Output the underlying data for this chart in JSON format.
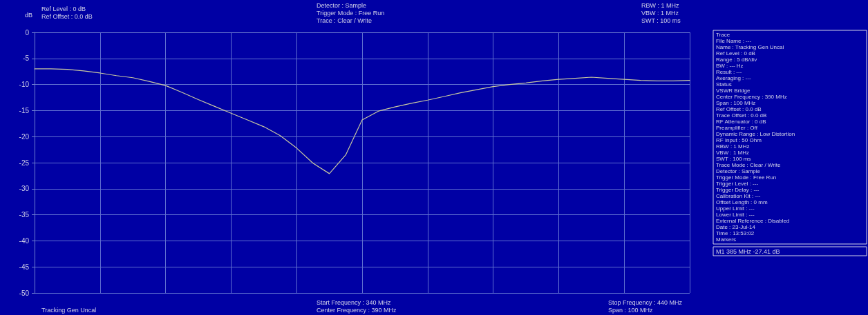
{
  "chart_data": {
    "type": "line",
    "ylabel": "dB",
    "categories": [
      null,
      null,
      null,
      null,
      null,
      null,
      null,
      null,
      null,
      null,
      null,
      null,
      null,
      null,
      null,
      null,
      null,
      null,
      null,
      null,
      null,
      null,
      null,
      null,
      null,
      null,
      null,
      null,
      null,
      null,
      null,
      null,
      null,
      null,
      null,
      null,
      null,
      null,
      null,
      null,
      null
    ],
    "series": [
      {
        "color": "#c8c8a0",
        "values": [
          -7.0,
          -7.0,
          -7.1,
          -7.4,
          -7.8,
          -8.3,
          -8.7,
          -9.4,
          -10.2,
          -11.5,
          -12.9,
          -14.2,
          -15.5,
          -16.8,
          -18.1,
          -19.8,
          -22.2,
          -25.1,
          -27.1,
          -23.5,
          -16.8,
          -15.1,
          -14.3,
          -13.6,
          -13.0,
          -12.3,
          -11.6,
          -11.0,
          -10.4,
          -10.0,
          -9.7,
          -9.3,
          -9.0,
          -8.8,
          -8.6,
          -8.8,
          -9.0,
          -9.2,
          -9.3,
          -9.3,
          -9.2
        ]
      }
    ],
    "ylim": [
      -50,
      0
    ],
    "yticks": [
      -50,
      -45,
      -40,
      -35,
      -30,
      -25,
      -20,
      -15,
      -10,
      -5,
      0
    ],
    "tick_labels": "y",
    "grid": true,
    "marker": "none",
    "line_style": "solid",
    "annotations": [
      "Ref Level : 0 dB",
      "Ref Offset : 0.0 dB",
      "Detector : Sample",
      "Trigger Mode : Free Run",
      "Trace : Clear / Write",
      "RBW : 1 MHz",
      "VBW : 1 MHz",
      "SWT : 100 ms",
      "Tracking Gen Uncal",
      "Start Frequency : 340 MHz",
      "Center Frequency : 390 MHz",
      "Stop Frequency : 440 MHz",
      "Span : 100 MHz",
      "Trace",
      "File Name : ---",
      "Name : Tracking Gen Uncal",
      "Ref Level : 0 dB",
      "Range : 5 dB/div",
      "BW : --- Hz",
      "Result : ---",
      "Averaging : ---",
      "Status",
      "VSWR Bridge",
      "Center Frequency : 390 MHz",
      "Span : 100 MHz",
      "Ref Offset : 0.0 dB",
      "Trace Offset : 0.0 dB",
      "RF Attenuator : 0 dB",
      "Preamplifier : Off",
      "Dynamic Range : Low Distortion",
      "RF Input : 50 Ohm",
      "RBW : 1 MHz",
      "VBW : 1 MHz",
      "SWT : 100 ms",
      "Trace Mode : Clear / Write",
      "Detector : Sample",
      "Trigger Mode : Free Run",
      "Trigger Level : ---",
      "Trigger Delay : ---",
      "Calibration Kit : ---",
      "Offset Length : 0 mm",
      "Upper Limit : ---",
      "Lower Limit : ---",
      "External Reference : Disabled",
      "Date : 23-Jul-14",
      "Time : 13:53:02",
      "Markers",
      "M1 385 MHz -27.41 dB"
    ]
  }
}
